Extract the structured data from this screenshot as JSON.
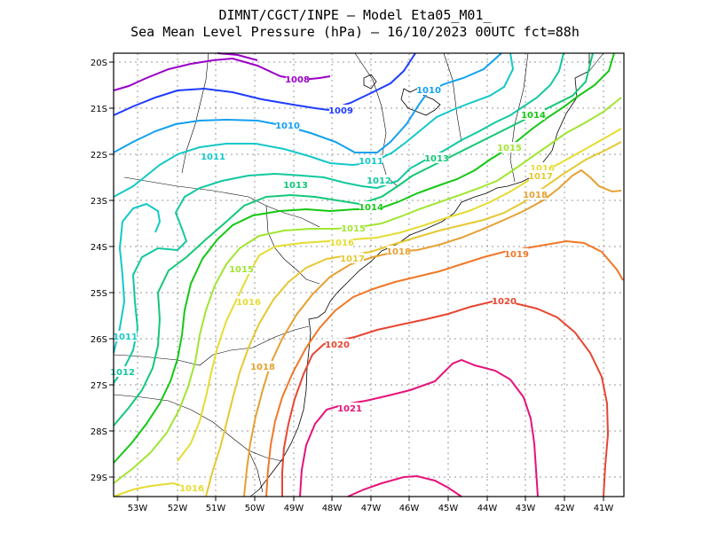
{
  "title_line1": "DIMNT/CGCT/INPE –  Model Eta05_M01_",
  "title_line2": "Sea Mean Level Pressure (hPa) – 16/10/2023 00UTC fct=88h",
  "x_ticks": [
    "53W",
    "52W",
    "51W",
    "50W",
    "49W",
    "48W",
    "47W",
    "46W",
    "45W",
    "44W",
    "43W",
    "42W",
    "41W"
  ],
  "y_ticks": [
    "20S",
    "21S",
    "22S",
    "23S",
    "24S",
    "25S",
    "26S",
    "27S",
    "28S",
    "29S"
  ],
  "colors": {
    "1008": "#9a00c8",
    "1009": "#1e3cff",
    "1010": "#12a0f0",
    "1011": "#15c8c8",
    "1012": "#12c8a0",
    "1013": "#12c878",
    "1014": "#14c814",
    "1015": "#a0e632",
    "1016": "#e6dc32",
    "1017": "#e6c832",
    "1018": "#e6a032",
    "1019": "#f07828",
    "1020": "#e64632",
    "1021": "#e6127a"
  },
  "contour_labels": [
    {
      "text": "1008",
      "level": "1008"
    },
    {
      "text": "1009",
      "level": "1009"
    },
    {
      "text": "1010",
      "level": "1010"
    },
    {
      "text": "1010",
      "level": "1010"
    },
    {
      "text": "1011",
      "level": "1011"
    },
    {
      "text": "1011",
      "level": "1011"
    },
    {
      "text": "1011",
      "level": "1011"
    },
    {
      "text": "1012",
      "level": "1012"
    },
    {
      "text": "1012",
      "level": "1012"
    },
    {
      "text": "1013",
      "level": "1013"
    },
    {
      "text": "1013",
      "level": "1013"
    },
    {
      "text": "1014",
      "level": "1014"
    },
    {
      "text": "1014",
      "level": "1014"
    },
    {
      "text": "1015",
      "level": "1015"
    },
    {
      "text": "1015",
      "level": "1015"
    },
    {
      "text": "1015",
      "level": "1015"
    },
    {
      "text": "1016",
      "level": "1016"
    },
    {
      "text": "1016",
      "level": "1016"
    },
    {
      "text": "1016",
      "level": "1016"
    },
    {
      "text": "1016",
      "level": "1016"
    },
    {
      "text": "1017",
      "level": "1017"
    },
    {
      "text": "1017",
      "level": "1017"
    },
    {
      "text": "1018",
      "level": "1018"
    },
    {
      "text": "1018",
      "level": "1018"
    },
    {
      "text": "1018",
      "level": "1018"
    },
    {
      "text": "1019",
      "level": "1019"
    },
    {
      "text": "1020",
      "level": "1020"
    },
    {
      "text": "1020",
      "level": "1020"
    },
    {
      "text": "1021",
      "level": "1021"
    }
  ]
}
